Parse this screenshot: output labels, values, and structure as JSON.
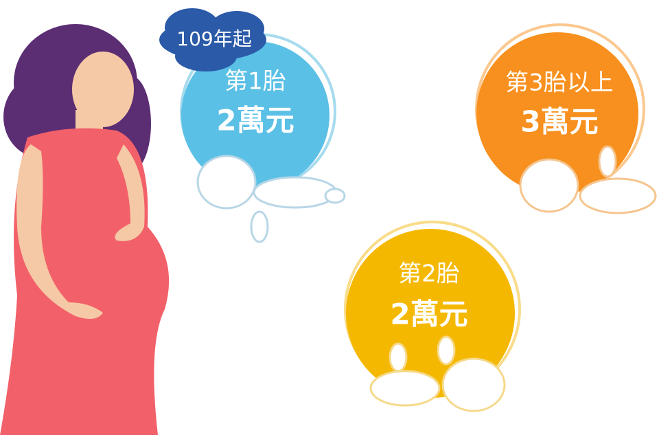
{
  "badge": "109年起",
  "circles": [
    {
      "label": "第1胎",
      "amount": "2萬元"
    },
    {
      "label": "第3胎以上",
      "amount": "3萬元"
    },
    {
      "label": "第2胎",
      "amount": "2萬元"
    }
  ]
}
